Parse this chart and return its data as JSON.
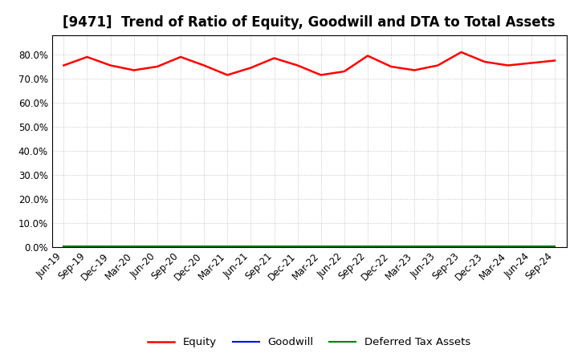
{
  "title": "[9471]  Trend of Ratio of Equity, Goodwill and DTA to Total Assets",
  "x_labels": [
    "Jun-19",
    "Sep-19",
    "Dec-19",
    "Mar-20",
    "Jun-20",
    "Sep-20",
    "Dec-20",
    "Mar-21",
    "Jun-21",
    "Sep-21",
    "Dec-21",
    "Mar-22",
    "Jun-22",
    "Sep-22",
    "Dec-22",
    "Mar-23",
    "Jun-23",
    "Sep-23",
    "Dec-23",
    "Mar-24",
    "Jun-24",
    "Sep-24"
  ],
  "equity": [
    75.5,
    79.0,
    75.5,
    73.5,
    75.0,
    79.0,
    75.5,
    71.5,
    74.5,
    78.5,
    75.5,
    71.5,
    73.0,
    79.5,
    75.0,
    73.5,
    75.5,
    81.0,
    77.0,
    75.5,
    76.5,
    77.5
  ],
  "goodwill": [
    0.0,
    0.0,
    0.0,
    0.0,
    0.0,
    0.0,
    0.0,
    0.0,
    0.0,
    0.0,
    0.0,
    0.0,
    0.0,
    0.0,
    0.0,
    0.0,
    0.0,
    0.0,
    0.0,
    0.0,
    0.0,
    0.0
  ],
  "dta": [
    0.5,
    0.5,
    0.5,
    0.5,
    0.5,
    0.5,
    0.5,
    0.5,
    0.5,
    0.5,
    0.5,
    0.5,
    0.5,
    0.5,
    0.5,
    0.5,
    0.5,
    0.5,
    0.5,
    0.5,
    0.5,
    0.5
  ],
  "equity_color": "#FF0000",
  "goodwill_color": "#0000FF",
  "dta_color": "#008000",
  "ylim": [
    0,
    88
  ],
  "yticks": [
    0.0,
    10.0,
    20.0,
    30.0,
    40.0,
    50.0,
    60.0,
    70.0,
    80.0
  ],
  "background_color": "#FFFFFF",
  "plot_bg_color": "#FFFFFF",
  "grid_color": "#999999",
  "legend_labels": [
    "Equity",
    "Goodwill",
    "Deferred Tax Assets"
  ],
  "title_fontsize": 12,
  "tick_fontsize": 8.5,
  "legend_fontsize": 9.5
}
